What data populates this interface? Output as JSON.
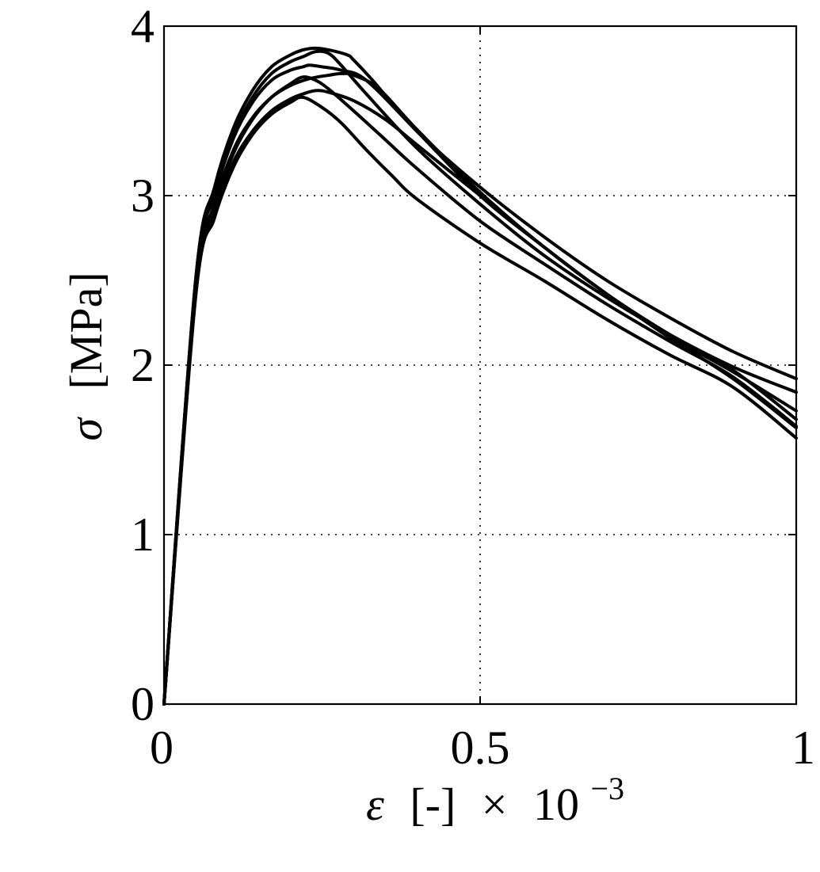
{
  "chart_data": {
    "type": "line",
    "title": "",
    "xlabel": {
      "symbol": "ε",
      "unit": "[-]",
      "times": "×",
      "scale_base": "10",
      "scale_exponent": "−3"
    },
    "ylabel": {
      "symbol": "σ",
      "unit": "[MPa]"
    },
    "xlim": [
      0,
      1
    ],
    "ylim": [
      0,
      4
    ],
    "x_ticks": [
      0,
      0.5,
      1
    ],
    "x_tick_labels": [
      "0",
      "0.5",
      "1"
    ],
    "y_ticks": [
      0,
      1,
      2,
      3,
      4
    ],
    "y_tick_labels": [
      "0",
      "1",
      "2",
      "3",
      "4"
    ],
    "grid": true,
    "legend": "none",
    "line_color": "#000000",
    "series": [
      {
        "x": [
          0,
          0.05,
          0.08,
          0.11,
          0.14,
          0.17,
          0.2,
          0.22,
          0.24,
          0.26,
          0.29,
          0.3,
          0.33,
          0.4,
          0.5,
          0.6,
          0.7,
          0.8,
          0.9,
          1.0
        ],
        "y": [
          0,
          2.5,
          3.05,
          3.4,
          3.62,
          3.76,
          3.83,
          3.86,
          3.87,
          3.86,
          3.83,
          3.8,
          3.68,
          3.38,
          3.05,
          2.76,
          2.5,
          2.28,
          2.08,
          1.92
        ]
      },
      {
        "x": [
          0,
          0.05,
          0.08,
          0.11,
          0.14,
          0.17,
          0.2,
          0.22,
          0.24,
          0.26,
          0.28,
          0.32,
          0.4,
          0.5,
          0.6,
          0.7,
          0.8,
          0.9,
          1.0
        ],
        "y": [
          0,
          2.5,
          3.02,
          3.36,
          3.58,
          3.72,
          3.79,
          3.82,
          3.85,
          3.84,
          3.77,
          3.6,
          3.28,
          2.95,
          2.65,
          2.4,
          2.18,
          1.99,
          1.84
        ]
      },
      {
        "x": [
          0,
          0.05,
          0.08,
          0.11,
          0.14,
          0.17,
          0.2,
          0.22,
          0.23,
          0.25,
          0.28,
          0.32,
          0.4,
          0.5,
          0.6,
          0.7,
          0.8,
          0.9,
          1.0
        ],
        "y": [
          0,
          2.48,
          3.0,
          3.34,
          3.55,
          3.68,
          3.74,
          3.76,
          3.77,
          3.76,
          3.74,
          3.68,
          3.38,
          3.0,
          2.7,
          2.42,
          2.17,
          1.96,
          1.73
        ]
      },
      {
        "x": [
          0,
          0.05,
          0.08,
          0.11,
          0.14,
          0.17,
          0.2,
          0.23,
          0.26,
          0.28,
          0.3,
          0.34,
          0.4,
          0.5,
          0.6,
          0.7,
          0.8,
          0.9,
          1.0
        ],
        "y": [
          0,
          2.45,
          2.95,
          3.27,
          3.46,
          3.58,
          3.65,
          3.69,
          3.71,
          3.72,
          3.71,
          3.63,
          3.39,
          3.02,
          2.7,
          2.42,
          2.18,
          1.97,
          1.68
        ]
      },
      {
        "x": [
          0,
          0.05,
          0.08,
          0.11,
          0.14,
          0.17,
          0.2,
          0.22,
          0.24,
          0.26,
          0.3,
          0.35,
          0.4,
          0.5,
          0.6,
          0.7,
          0.8,
          0.9,
          1.0
        ],
        "y": [
          0,
          2.44,
          2.93,
          3.25,
          3.45,
          3.58,
          3.66,
          3.7,
          3.68,
          3.63,
          3.5,
          3.33,
          3.16,
          2.85,
          2.6,
          2.36,
          2.14,
          1.93,
          1.64
        ]
      },
      {
        "x": [
          0,
          0.05,
          0.08,
          0.11,
          0.14,
          0.17,
          0.2,
          0.22,
          0.24,
          0.26,
          0.3,
          0.35,
          0.4,
          0.5,
          0.6,
          0.7,
          0.8,
          0.9,
          1.0
        ],
        "y": [
          0,
          2.42,
          2.9,
          3.2,
          3.38,
          3.5,
          3.57,
          3.6,
          3.62,
          3.61,
          3.56,
          3.45,
          3.3,
          3.0,
          2.7,
          2.42,
          2.16,
          1.92,
          1.63
        ]
      },
      {
        "x": [
          0,
          0.05,
          0.08,
          0.11,
          0.14,
          0.17,
          0.2,
          0.22,
          0.25,
          0.28,
          0.32,
          0.36,
          0.4,
          0.5,
          0.6,
          0.7,
          0.8,
          0.9,
          1.0
        ],
        "y": [
          0,
          2.4,
          2.87,
          3.17,
          3.36,
          3.48,
          3.55,
          3.58,
          3.52,
          3.43,
          3.27,
          3.12,
          2.98,
          2.72,
          2.5,
          2.27,
          2.06,
          1.87,
          1.57
        ]
      }
    ]
  }
}
